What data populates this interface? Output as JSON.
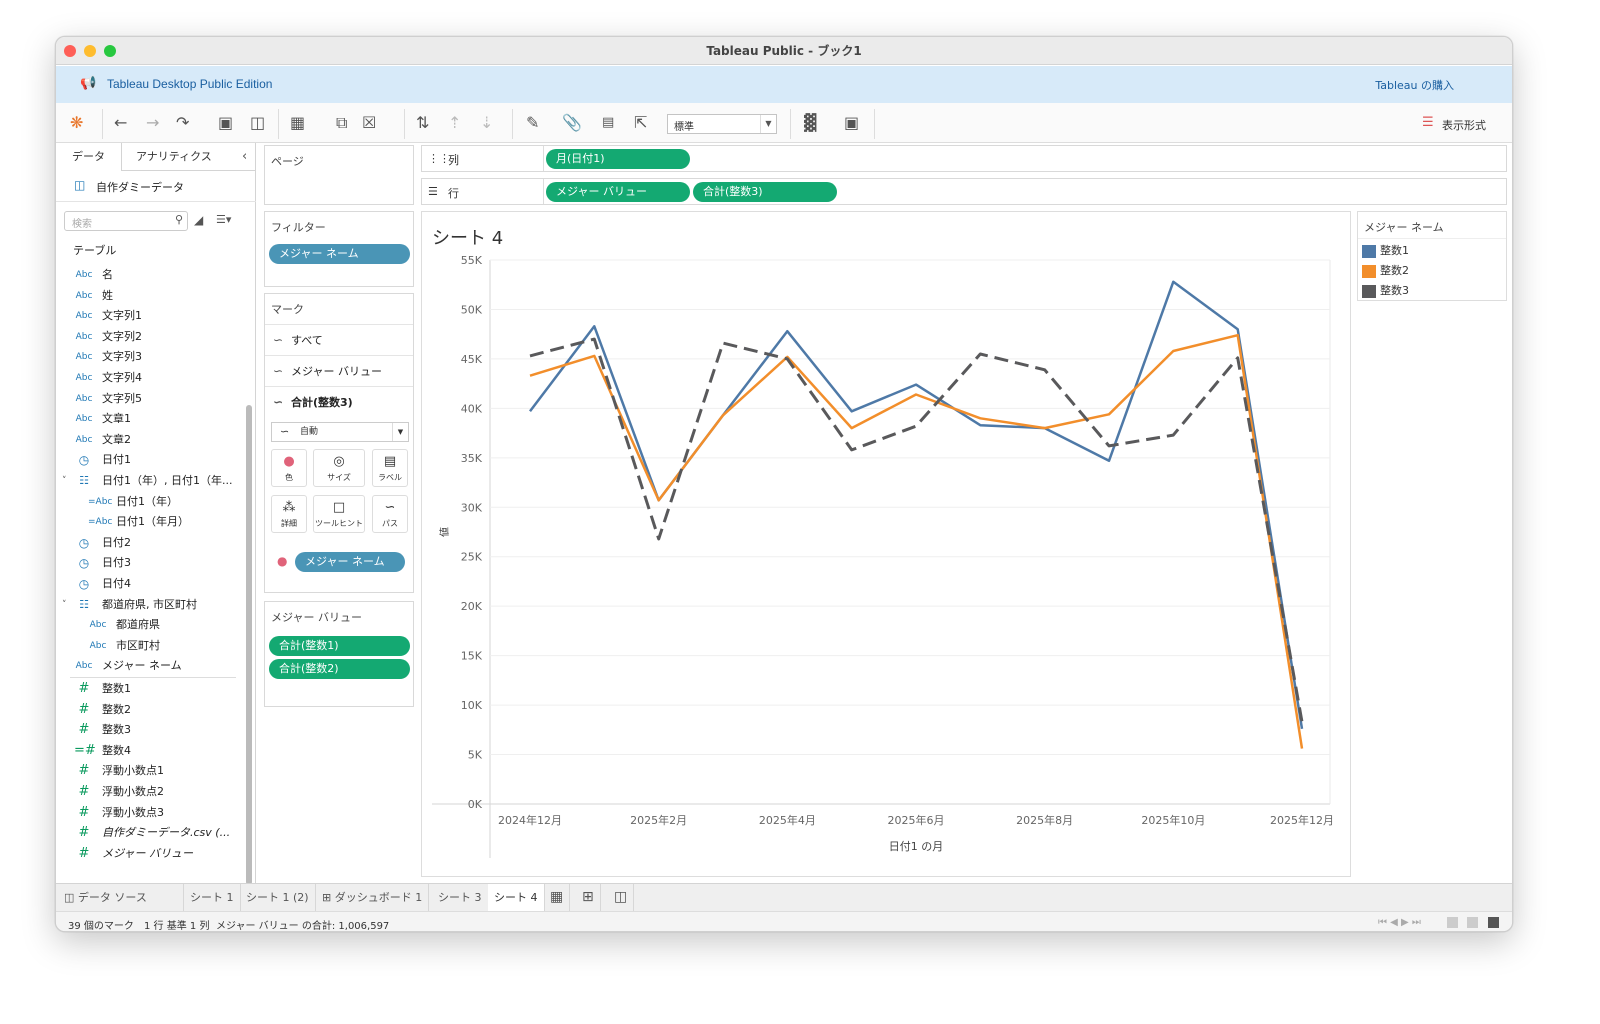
{
  "window": {
    "title": "Tableau Public - ブック1"
  },
  "banner": {
    "edition": "Tableau Desktop Public Edition",
    "buy": "Tableau の購入"
  },
  "toolbar": {
    "mark_dropdown": "標準",
    "show_me": "表示形式"
  },
  "left_panel": {
    "tabs": [
      "データ",
      "アナリティクス"
    ],
    "datasource": "自作ダミーデータ",
    "search_placeholder": "検索",
    "section": "テーブル",
    "fields": [
      {
        "type": "Abc",
        "label": "名",
        "indent": 0
      },
      {
        "type": "Abc",
        "label": "姓",
        "indent": 0
      },
      {
        "type": "Abc",
        "label": "文字列1",
        "indent": 0
      },
      {
        "type": "Abc",
        "label": "文字列2",
        "indent": 0
      },
      {
        "type": "Abc",
        "label": "文字列3",
        "indent": 0
      },
      {
        "type": "Abc",
        "label": "文字列4",
        "indent": 0
      },
      {
        "type": "Abc",
        "label": "文字列5",
        "indent": 0
      },
      {
        "type": "Abc",
        "label": "文章1",
        "indent": 0
      },
      {
        "type": "Abc",
        "label": "文章2",
        "indent": 0
      },
      {
        "type": "date",
        "label": "日付1",
        "indent": 0
      },
      {
        "type": "hier",
        "label": "日付1（年）, 日付1（年...",
        "indent": 0
      },
      {
        "type": "=Abc",
        "label": "日付1（年）",
        "indent": 1
      },
      {
        "type": "=Abc",
        "label": "日付1（年月）",
        "indent": 1
      },
      {
        "type": "date",
        "label": "日付2",
        "indent": 0
      },
      {
        "type": "date",
        "label": "日付3",
        "indent": 0
      },
      {
        "type": "date",
        "label": "日付4",
        "indent": 0
      },
      {
        "type": "hier",
        "label": "都道府県, 市区町村",
        "indent": 0
      },
      {
        "type": "Abc",
        "label": "都道府県",
        "indent": 1
      },
      {
        "type": "Abc",
        "label": "市区町村",
        "indent": 1
      },
      {
        "type": "Abc",
        "label": "メジャー ネーム",
        "indent": 0
      },
      {
        "type": "#",
        "label": "整数1",
        "indent": 0
      },
      {
        "type": "#",
        "label": "整数2",
        "indent": 0
      },
      {
        "type": "#",
        "label": "整数3",
        "indent": 0
      },
      {
        "type": "=#",
        "label": "整数4",
        "indent": 0
      },
      {
        "type": "#",
        "label": "浮動小数点1",
        "indent": 0
      },
      {
        "type": "#",
        "label": "浮動小数点2",
        "indent": 0
      },
      {
        "type": "#",
        "label": "浮動小数点3",
        "indent": 0
      },
      {
        "type": "#",
        "label": "自作ダミーデータ.csv (...",
        "indent": 0
      },
      {
        "type": "#",
        "label": "メジャー バリュー",
        "indent": 0
      }
    ]
  },
  "pages": {
    "title": "ページ"
  },
  "filters": {
    "title": "フィルター",
    "pill": "メジャー ネーム"
  },
  "marks": {
    "title": "マーク",
    "rows": [
      "すべて",
      "メジャー バリュー",
      "合計(整数3)"
    ],
    "type": "自動",
    "buttons": [
      "色",
      "サイズ",
      "ラベル",
      "詳細",
      "ツールヒント",
      "パス"
    ],
    "color_pill": "メジャー ネーム"
  },
  "measure_values": {
    "title": "メジャー バリュー",
    "pills": [
      "合計(整数1)",
      "合計(整数2)"
    ]
  },
  "shelves": {
    "columns_label": "列",
    "columns_pill": "月(日付1)",
    "rows_label": "行",
    "rows_pills": [
      "メジャー バリュー",
      "合計(整数3)"
    ]
  },
  "sheet": {
    "title": "シート 4"
  },
  "legend": {
    "title": "メジャー ネーム",
    "items": [
      {
        "name": "整数1",
        "color": "#4e79a7"
      },
      {
        "name": "整数2",
        "color": "#f28e2b"
      },
      {
        "name": "整数3",
        "color": "#59595b"
      }
    ]
  },
  "chart_data": {
    "type": "line",
    "xlabel": "日付1 の月",
    "ylabel": "値",
    "x": [
      "2024年12月",
      "2025年1月",
      "2025年2月",
      "2025年3月",
      "2025年4月",
      "2025年5月",
      "2025年6月",
      "2025年7月",
      "2025年8月",
      "2025年9月",
      "2025年10月",
      "2025年11月",
      "2025年12月"
    ],
    "x_tick_labels": [
      "2024年12月",
      "2025年2月",
      "2025年4月",
      "2025年6月",
      "2025年8月",
      "2025年10月",
      "2025年12月"
    ],
    "y_tick_labels": [
      "0K",
      "5K",
      "10K",
      "15K",
      "20K",
      "25K",
      "30K",
      "35K",
      "40K",
      "45K",
      "50K",
      "55K"
    ],
    "ylim": [
      0,
      55000
    ],
    "grid": true,
    "series": [
      {
        "name": "整数1",
        "color": "#4e79a7",
        "dashed": false,
        "values": [
          39700,
          48300,
          30700,
          39300,
          47800,
          39700,
          42400,
          38300,
          38000,
          34700,
          52800,
          48000,
          7600
        ]
      },
      {
        "name": "整数2",
        "color": "#f28e2b",
        "dashed": false,
        "values": [
          43300,
          45300,
          30700,
          39300,
          45200,
          38000,
          41400,
          39000,
          38000,
          39400,
          45800,
          47400,
          5600
        ]
      },
      {
        "name": "整数3",
        "color": "#59595b",
        "dashed": true,
        "values": [
          45300,
          47000,
          26800,
          46600,
          45000,
          35800,
          38200,
          45500,
          43900,
          36200,
          37300,
          45100,
          8300
        ]
      }
    ]
  },
  "bottom_tabs": [
    "データ ソース",
    "シート 1",
    "シート 1 (2)",
    "ダッシュボード 1",
    "シート 3",
    "シート 4"
  ],
  "status": {
    "marks": "39 個のマーク",
    "rows": "1 行 基準 1 列",
    "sum": "メジャー バリュー の合計: 1,006,597"
  }
}
